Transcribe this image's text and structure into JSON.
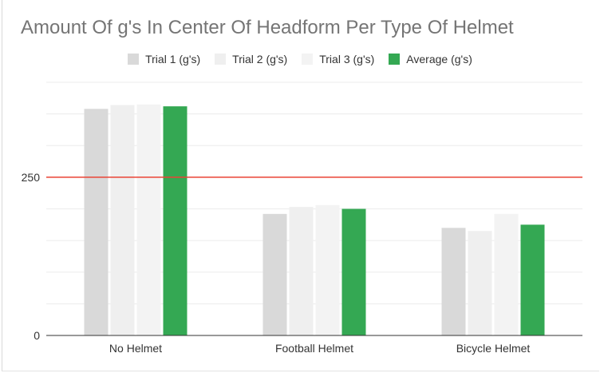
{
  "chart_data": {
    "type": "bar",
    "title": "Amount Of g's In Center Of Headform Per Type Of Helmet",
    "categories": [
      "No Helmet",
      "Football Helmet",
      "Bicycle Helmet"
    ],
    "series": [
      {
        "name": "Trial 1 (g's)",
        "color": "#d9d9d9",
        "values": [
          358,
          192,
          170
        ]
      },
      {
        "name": "Trial 2 (g's)",
        "color": "#efefef",
        "values": [
          364,
          203,
          165
        ]
      },
      {
        "name": "Trial 3 (g's)",
        "color": "#f3f3f3",
        "values": [
          365,
          206,
          192
        ]
      },
      {
        "name": "Average (g's)",
        "color": "#34a853",
        "values": [
          362,
          200,
          175
        ]
      }
    ],
    "ylim": [
      0,
      400
    ],
    "y_ticks": [
      "0",
      "250"
    ],
    "reference_line": {
      "value": 250,
      "color": "#ea4335"
    },
    "grid": true,
    "legend_position": "top"
  }
}
